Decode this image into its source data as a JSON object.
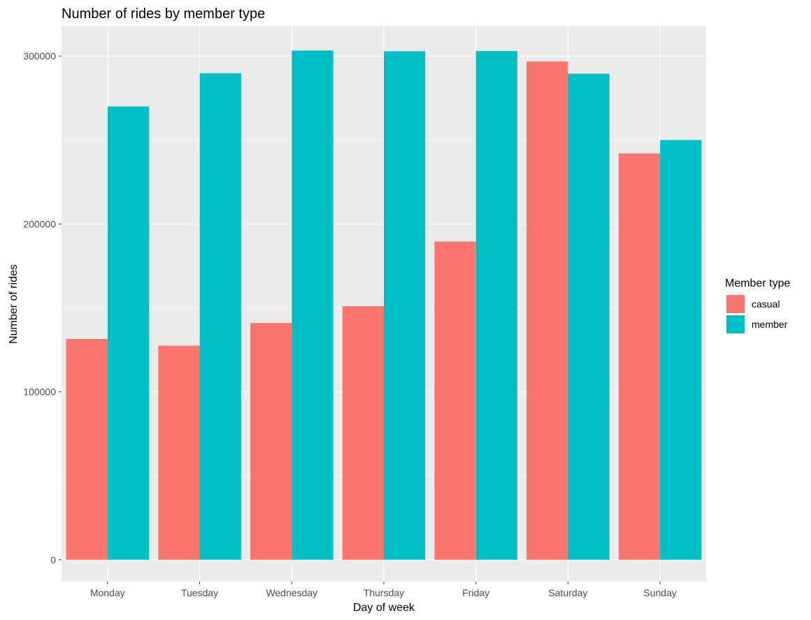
{
  "chart_data": {
    "type": "bar",
    "title": "Number of rides by member type",
    "xlabel": "Day of week",
    "ylabel": "Number of rides",
    "categories": [
      "Monday",
      "Tuesday",
      "Wednesday",
      "Thursday",
      "Friday",
      "Saturday",
      "Sunday"
    ],
    "series": [
      {
        "name": "casual",
        "color": "#F8766D",
        "values": [
          131500,
          127500,
          141000,
          151000,
          189500,
          296800,
          242000
        ]
      },
      {
        "name": "member",
        "color": "#00BFC4",
        "values": [
          270000,
          289800,
          303300,
          302900,
          303000,
          289500,
          250000
        ]
      }
    ],
    "ylim": [
      -13000,
      318000
    ],
    "yticks": [
      0,
      100000,
      200000,
      300000
    ],
    "ytick_labels": [
      "0",
      "100000",
      "200000",
      "300000"
    ],
    "grid": true,
    "legend": {
      "title": "Member type",
      "position": "right"
    },
    "panel_background": "#EBEBEB",
    "grid_color": "#FFFFFF"
  }
}
